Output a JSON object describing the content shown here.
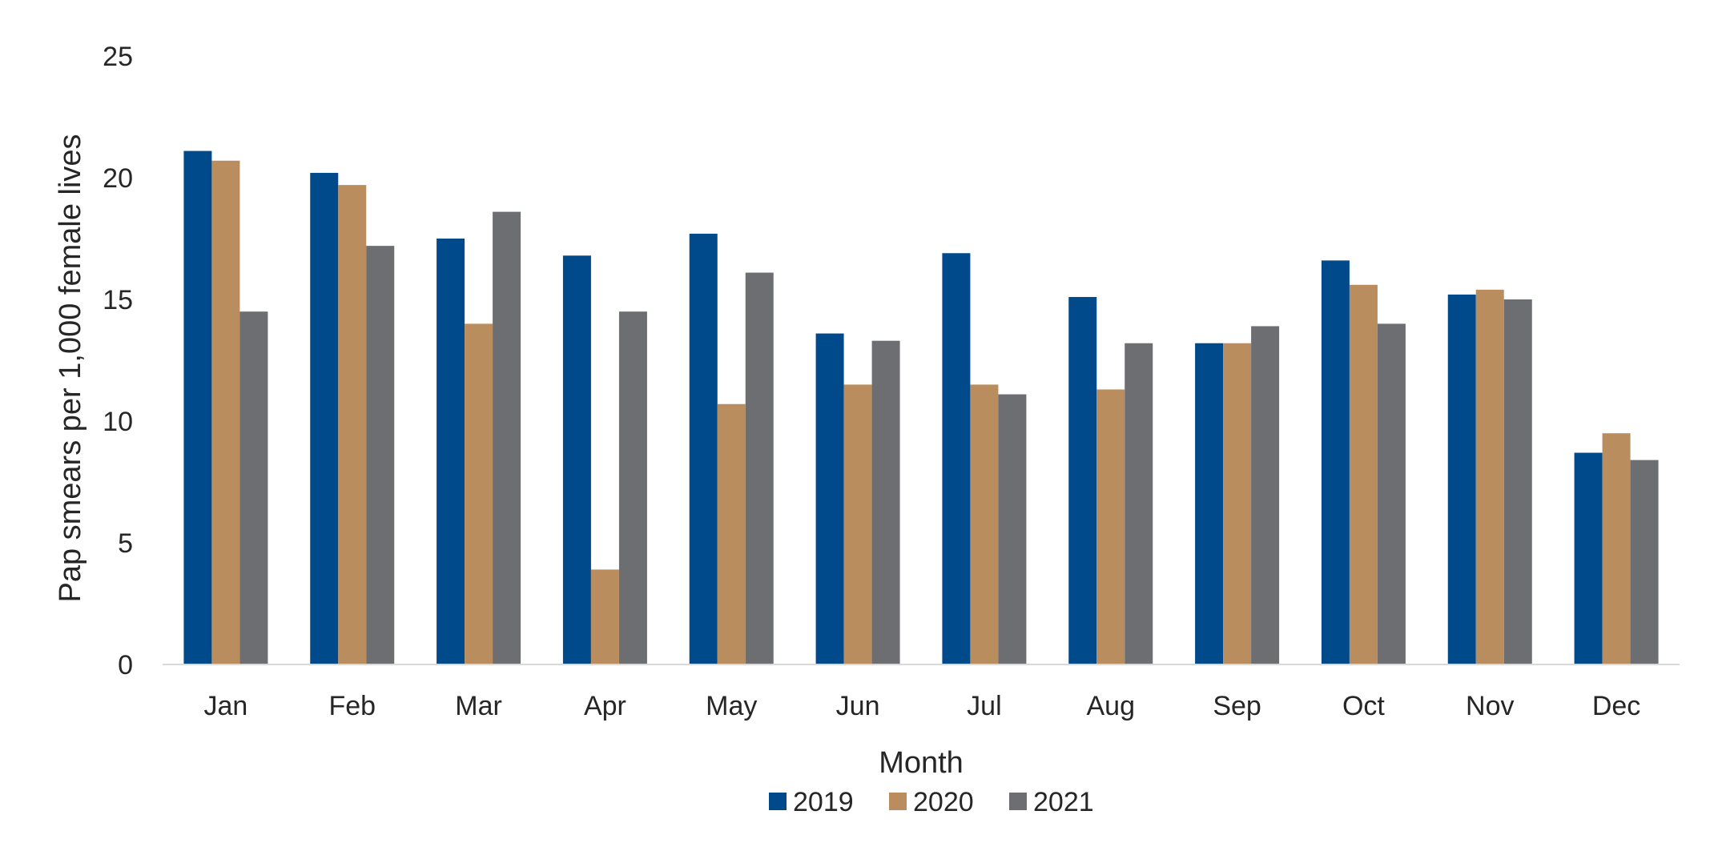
{
  "chart_data": {
    "type": "bar",
    "categories": [
      "Jan",
      "Feb",
      "Mar",
      "Apr",
      "May",
      "Jun",
      "Jul",
      "Aug",
      "Sep",
      "Oct",
      "Nov",
      "Dec"
    ],
    "series": [
      {
        "name": "2019",
        "color": "#004A8C",
        "values": [
          21.1,
          20.2,
          17.5,
          16.8,
          17.7,
          13.6,
          16.9,
          15.1,
          13.2,
          16.6,
          15.2,
          8.7
        ]
      },
      {
        "name": "2020",
        "color": "#BA8D5E",
        "values": [
          20.7,
          19.7,
          14.0,
          3.9,
          10.7,
          11.5,
          11.5,
          11.3,
          13.2,
          15.6,
          15.4,
          9.5
        ]
      },
      {
        "name": "2021",
        "color": "#6D6E71",
        "values": [
          14.5,
          17.2,
          18.6,
          14.5,
          16.1,
          13.3,
          11.1,
          13.2,
          13.9,
          14.0,
          15.0,
          8.4
        ]
      }
    ],
    "title": "",
    "xlabel": "Month",
    "ylabel": "Pap smears per 1,000 female lives",
    "ylim": [
      0,
      25
    ],
    "yticks": [
      0,
      5,
      10,
      15,
      20,
      25
    ],
    "grid": false,
    "legend": {
      "position": "bottom"
    }
  }
}
